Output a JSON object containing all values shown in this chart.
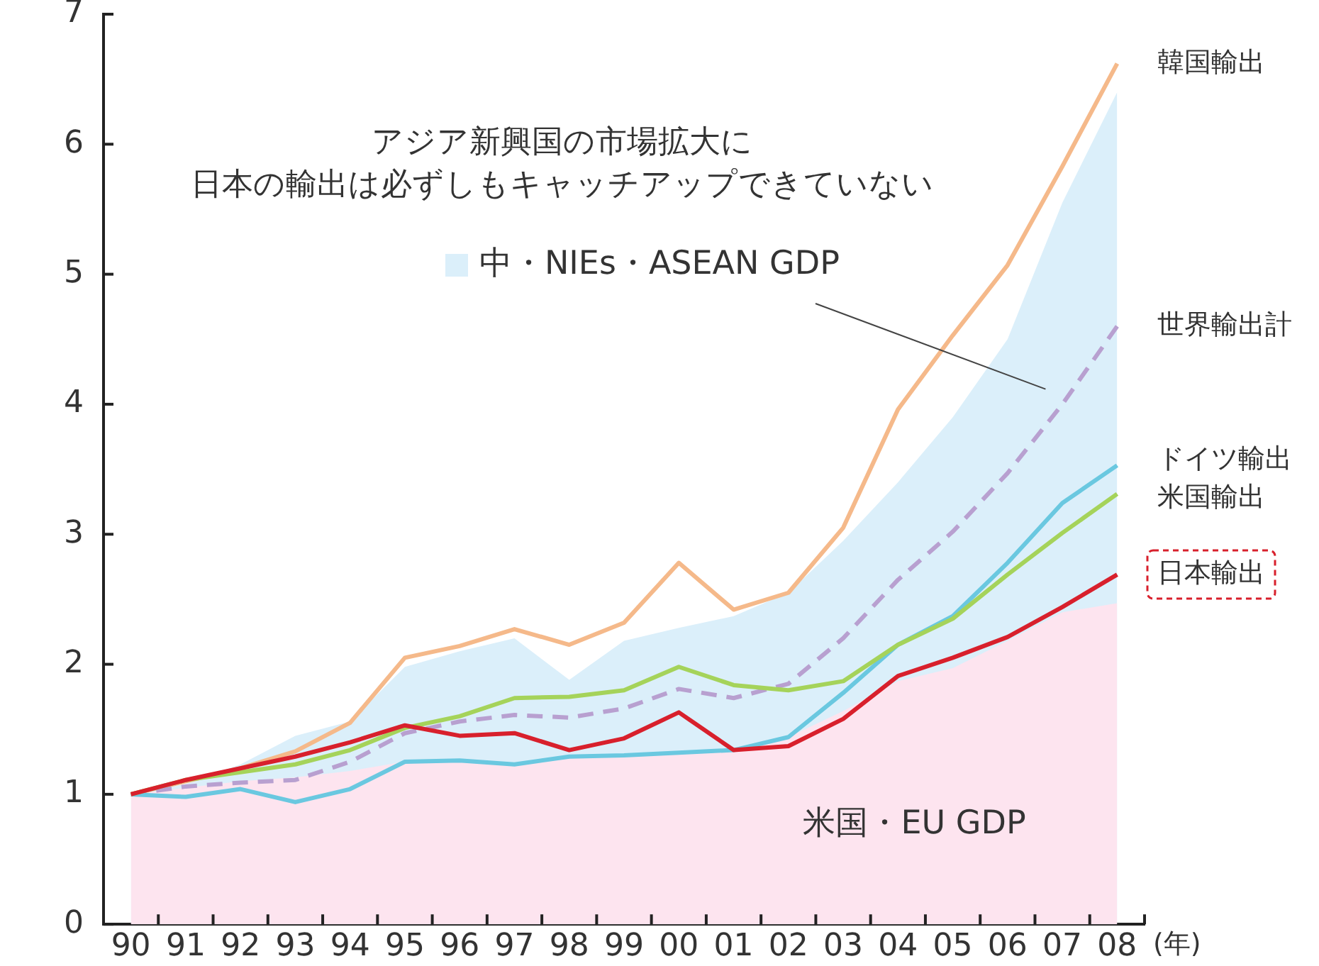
{
  "chart_data": {
    "type": "line",
    "xlabel": "(年)",
    "categories": [
      "90",
      "91",
      "92",
      "93",
      "94",
      "95",
      "96",
      "97",
      "98",
      "99",
      "00",
      "01",
      "02",
      "03",
      "04",
      "05",
      "06",
      "07",
      "08"
    ],
    "ylim": [
      0,
      7
    ],
    "yticks": [
      0,
      1,
      2,
      3,
      4,
      5,
      6,
      7
    ],
    "annotations": [
      "アジア新興国の市場拡大に",
      "日本の輸出は必ずしもキャッチアップできていない"
    ],
    "series": [
      {
        "name": "中・NIEs・ASEAN GDP",
        "type": "area",
        "color": "#dbeffa",
        "values": [
          1.0,
          1.08,
          1.23,
          1.45,
          1.56,
          1.98,
          2.1,
          2.2,
          1.88,
          2.18,
          2.28,
          2.37,
          2.55,
          2.95,
          3.4,
          3.9,
          4.5,
          5.55,
          6.4
        ]
      },
      {
        "name": "米国・EU GDP",
        "type": "area",
        "color": "#fde4ef",
        "values": [
          1.0,
          1.05,
          1.1,
          1.13,
          1.18,
          1.25,
          1.26,
          1.23,
          1.28,
          1.3,
          1.32,
          1.34,
          1.44,
          1.64,
          1.87,
          1.97,
          2.18,
          2.4,
          2.47
        ]
      },
      {
        "name": "韓国輸出",
        "type": "line",
        "color": "#f5b98a",
        "values": [
          1.0,
          1.1,
          1.2,
          1.33,
          1.55,
          2.05,
          2.14,
          2.27,
          2.15,
          2.32,
          2.78,
          2.42,
          2.55,
          3.05,
          3.96,
          4.53,
          5.07,
          5.83,
          6.62
        ]
      },
      {
        "name": "世界輸出計",
        "type": "line",
        "line_style": "dashed",
        "color": "#b8a0d0",
        "values": [
          1.0,
          1.06,
          1.09,
          1.11,
          1.25,
          1.47,
          1.56,
          1.61,
          1.59,
          1.66,
          1.81,
          1.74,
          1.85,
          2.2,
          2.65,
          3.02,
          3.47,
          4.0,
          4.6
        ]
      },
      {
        "name": "ドイツ輸出",
        "type": "line",
        "color": "#6ac8e0",
        "values": [
          1.0,
          0.98,
          1.04,
          0.94,
          1.04,
          1.25,
          1.26,
          1.23,
          1.29,
          1.3,
          1.32,
          1.34,
          1.44,
          1.78,
          2.15,
          2.37,
          2.78,
          3.24,
          3.53
        ]
      },
      {
        "name": "米国輸出",
        "type": "line",
        "color": "#a5d35a",
        "values": [
          1.0,
          1.11,
          1.17,
          1.23,
          1.34,
          1.51,
          1.6,
          1.74,
          1.75,
          1.8,
          1.98,
          1.84,
          1.8,
          1.87,
          2.15,
          2.35,
          2.69,
          3.01,
          3.31
        ]
      },
      {
        "name": "日本輸出",
        "type": "line",
        "color": "#d8202c",
        "values": [
          1.0,
          1.11,
          1.2,
          1.29,
          1.4,
          1.53,
          1.45,
          1.47,
          1.34,
          1.43,
          1.63,
          1.34,
          1.37,
          1.58,
          1.91,
          2.05,
          2.21,
          2.44,
          2.69
        ]
      }
    ]
  }
}
